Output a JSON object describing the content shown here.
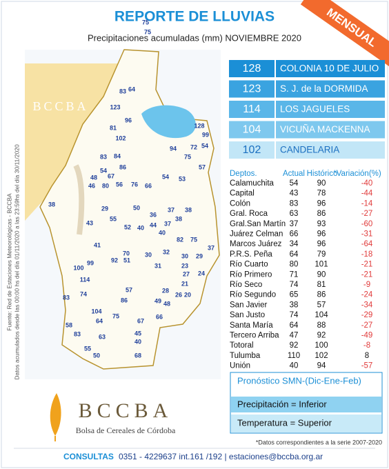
{
  "header": {
    "title": "REPORTE DE LLUVIAS",
    "subtitle": "Precipitaciones acumuladas (mm) NOVIEMBRE 2020",
    "badge": "MENSUAL"
  },
  "side_notes": [
    "Fuente: Red de Estaciones Meteorológicas - BCCBA",
    "Datos acumulados desde las 00:00 hs del día 01/11/2020 a las 23:59hs del día 30/11/2020"
  ],
  "map": {
    "watermark": "BCCBA",
    "stations": [
      75,
      75,
      83,
      64,
      123,
      96,
      81,
      102,
      83,
      84,
      86,
      54,
      67,
      48,
      46,
      80,
      56,
      76,
      66,
      54,
      53,
      57,
      128,
      99,
      94,
      72,
      54,
      75,
      38,
      29,
      55,
      43,
      50,
      36,
      37,
      38,
      38,
      44,
      37,
      52,
      40,
      40,
      82,
      75,
      37,
      41,
      70,
      92,
      51,
      30,
      32,
      30,
      29,
      31,
      23,
      27,
      24,
      100,
      99,
      114,
      21,
      83,
      74,
      57,
      86,
      28,
      49,
      48,
      26,
      20,
      104,
      64,
      75,
      66,
      67,
      58,
      83,
      63,
      45,
      40,
      55,
      50,
      68
    ]
  },
  "top_stations": [
    {
      "value": 128,
      "name": "COLONIA 10 DE JULIO"
    },
    {
      "value": 123,
      "name": "S. J. de la DORMIDA"
    },
    {
      "value": 114,
      "name": "LOS JAGUELES"
    },
    {
      "value": 104,
      "name": "VICUÑA MACKENNA"
    },
    {
      "value": 102,
      "name": "CANDELARIA"
    }
  ],
  "table": {
    "columns": [
      "Deptos.",
      "Actual",
      "Histórico",
      "*Variación(%)"
    ],
    "rows": [
      [
        "Calamuchita",
        54,
        90,
        -40
      ],
      [
        "Capital",
        43,
        78,
        -44
      ],
      [
        "Colón",
        83,
        96,
        -14
      ],
      [
        "Gral. Roca",
        63,
        86,
        -27
      ],
      [
        "Gral.San Martín",
        37,
        93,
        -60
      ],
      [
        "Juárez Celman",
        66,
        96,
        -31
      ],
      [
        "Marcos Juárez",
        34,
        96,
        -64
      ],
      [
        "P.R.S. Peña",
        64,
        79,
        -18
      ],
      [
        "Río Cuarto",
        80,
        101,
        -21
      ],
      [
        "Río Primero",
        71,
        90,
        -21
      ],
      [
        "Río Seco",
        74,
        81,
        -9
      ],
      [
        "Río Segundo",
        65,
        86,
        -24
      ],
      [
        "San Javier",
        38,
        57,
        -34
      ],
      [
        "San Justo",
        74,
        104,
        -29
      ],
      [
        "Santa María",
        64,
        88,
        -27
      ],
      [
        "Tercero Arriba",
        47,
        92,
        -49
      ],
      [
        "Totoral",
        92,
        100,
        -8
      ],
      [
        "Tulumba",
        110,
        102,
        8
      ],
      [
        "Unión",
        40,
        94,
        -57
      ]
    ]
  },
  "forecast": {
    "title": "Pronóstico SMN-(Dic-Ene-Feb)",
    "rows": [
      "Precipitación = Inferior",
      "Temperatura = Superior"
    ]
  },
  "footnote": "*Datos  correspondientes a la serie 2007-2020",
  "logo": {
    "name": "BCCBA",
    "subtitle": "Bolsa de Cereales de Córdoba"
  },
  "footer": {
    "label": "CONSULTAS",
    "text": "0351 - 4229637 int.161 /192 | estaciones@bccba.org.ar"
  }
}
